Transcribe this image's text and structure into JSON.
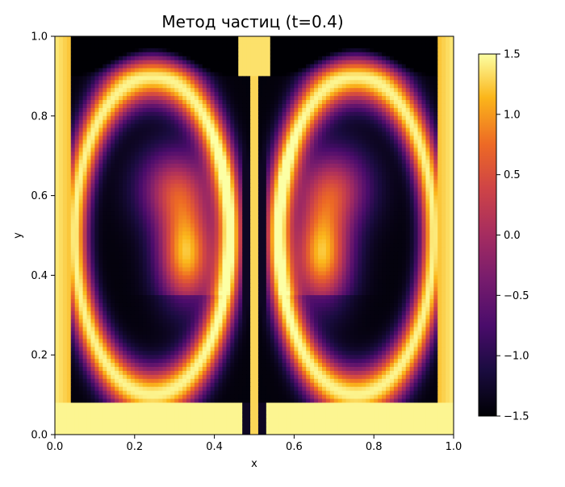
{
  "chart_data": {
    "type": "heatmap",
    "title": "Метод частиц (t=0.4)",
    "xlabel": "x",
    "ylabel": "y",
    "xlim": [
      0,
      1
    ],
    "ylim": [
      0,
      1
    ],
    "x_ticks": [
      "0.0",
      "0.2",
      "0.4",
      "0.6",
      "0.8",
      "1.0"
    ],
    "y_ticks": [
      "0.0",
      "0.2",
      "0.4",
      "0.6",
      "0.8",
      "1.0"
    ],
    "x_tick_values": [
      0,
      0.2,
      0.4,
      0.6,
      0.8,
      1.0
    ],
    "y_tick_values": [
      0,
      0.2,
      0.4,
      0.6,
      0.8,
      1.0
    ],
    "colormap": "inferno",
    "colorbar": {
      "range": [
        -1.5,
        1.5
      ],
      "ticks": [
        "1.5",
        "1.0",
        "0.5",
        "0.0",
        "−0.5",
        "−1.0",
        "−1.5"
      ],
      "tick_values": [
        1.5,
        1.0,
        0.5,
        0.0,
        -0.5,
        -1.0,
        -1.5
      ]
    },
    "grid": false,
    "field_description_values": {
      "min": -1.5,
      "max": 1.5,
      "symmetric_about_x": 0.5
    }
  }
}
